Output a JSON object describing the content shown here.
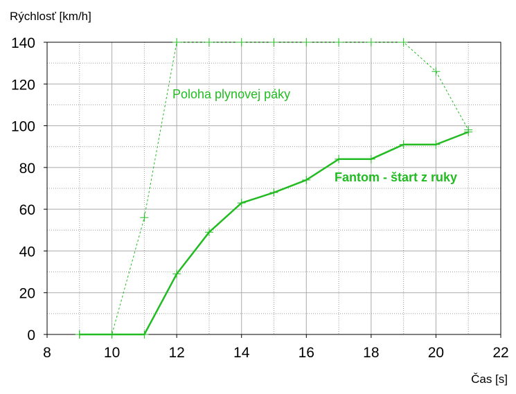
{
  "chart_data": {
    "type": "line",
    "ylabel": "Rýchlosť [km/h]",
    "xlabel": "Čas [s]",
    "xlim": [
      8,
      22
    ],
    "ylim": [
      0,
      140
    ],
    "x_ticks": [
      "8",
      "10",
      "12",
      "14",
      "16",
      "18",
      "20",
      "22"
    ],
    "y_ticks": [
      "0",
      "20",
      "40",
      "60",
      "80",
      "100",
      "120",
      "140"
    ],
    "grid": true,
    "series": [
      {
        "name": "Poloha plynovej páky",
        "style": "dashed",
        "color": "#22bb22",
        "x": [
          9,
          10,
          11,
          12,
          13,
          14,
          15,
          16,
          17,
          18,
          19,
          20,
          21
        ],
        "y": [
          0,
          0,
          56,
          140,
          140,
          140,
          140,
          140,
          140,
          140,
          140,
          126,
          98
        ]
      },
      {
        "name": "Fantom - štart z ruky",
        "style": "solid",
        "color": "#22bb22",
        "x": [
          9,
          10,
          11,
          12,
          13,
          14,
          15,
          16,
          17,
          18,
          19,
          20,
          21
        ],
        "y": [
          0,
          0,
          0,
          29,
          49,
          63,
          68,
          74,
          84,
          84,
          91,
          91,
          97
        ]
      }
    ]
  }
}
